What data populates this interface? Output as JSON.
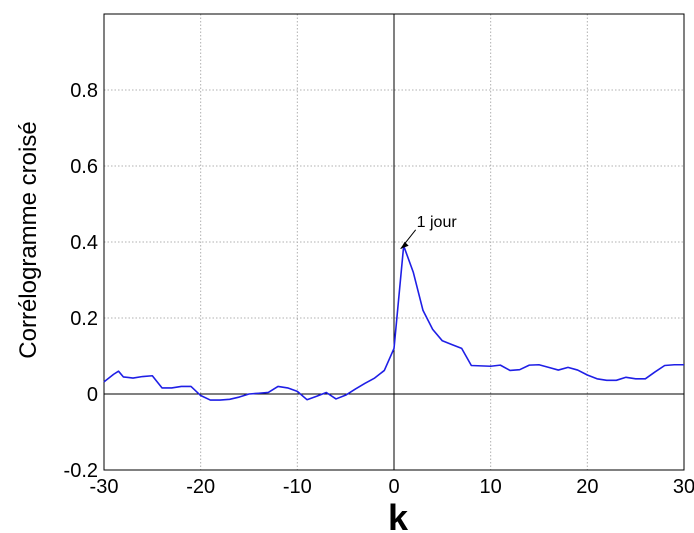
{
  "chart_data": {
    "type": "line",
    "title": "",
    "xlabel": "k",
    "ylabel": "Corrélogramme croisé",
    "xlim": [
      -30,
      30
    ],
    "ylim": [
      -0.2,
      1.0
    ],
    "grid": true,
    "xticks": [
      -30,
      -20,
      -10,
      0,
      10,
      20,
      30
    ],
    "xtick_labels": [
      "-30",
      "-20",
      "-10",
      "0",
      "10",
      "20",
      "30"
    ],
    "yticks": [
      -0.2,
      0,
      0.2,
      0.4,
      0.6,
      0.8
    ],
    "ytick_labels": [
      "-0.2",
      "0",
      "0.2",
      "0.4",
      "0.6",
      "0.8"
    ],
    "series": [
      {
        "color": "#1f1fe6",
        "x": [
          -30,
          -29,
          -28.5,
          -28,
          -27,
          -26,
          -25,
          -24,
          -23,
          -22,
          -21,
          -20,
          -19,
          -18,
          -17,
          -16,
          -15,
          -14,
          -13,
          -12,
          -11,
          -10,
          -9,
          -8,
          -7,
          -6,
          -5,
          -4,
          -3,
          -2,
          -1,
          0,
          1,
          2,
          3,
          4,
          5,
          6,
          7,
          8,
          9,
          10,
          11,
          12,
          13,
          14,
          15,
          16,
          17,
          18,
          19,
          20,
          21,
          22,
          23,
          24,
          25,
          26,
          27,
          28,
          29,
          30
        ],
        "y": [
          0.032,
          0.052,
          0.06,
          0.045,
          0.042,
          0.046,
          0.048,
          0.016,
          0.016,
          0.02,
          0.02,
          -0.004,
          -0.016,
          -0.016,
          -0.014,
          -0.008,
          0.0,
          0.002,
          0.004,
          0.02,
          0.016,
          0.007,
          -0.015,
          -0.006,
          0.004,
          -0.013,
          -0.003,
          0.013,
          0.028,
          0.042,
          0.062,
          0.12,
          0.39,
          0.32,
          0.22,
          0.17,
          0.14,
          0.13,
          0.12,
          0.075,
          0.074,
          0.073,
          0.076,
          0.062,
          0.064,
          0.076,
          0.077,
          0.07,
          0.063,
          0.07,
          0.063,
          0.05,
          0.04,
          0.036,
          0.036,
          0.044,
          0.04,
          0.04,
          0.058,
          0.075,
          0.077,
          0.077
        ]
      }
    ],
    "annotations": [
      {
        "text": "1 jour",
        "x": 1,
        "y": 0.39
      }
    ]
  }
}
